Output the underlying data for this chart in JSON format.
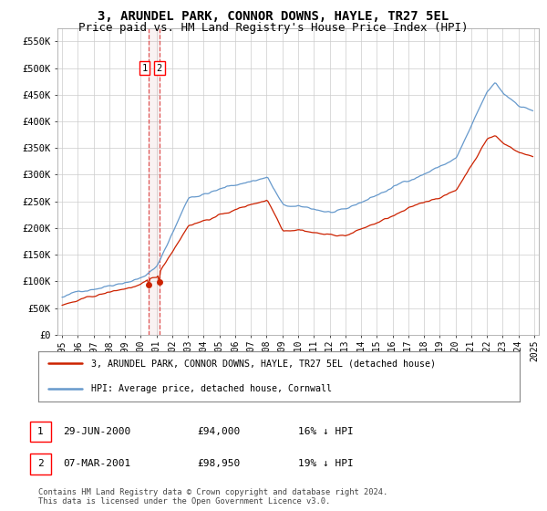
{
  "title": "3, ARUNDEL PARK, CONNOR DOWNS, HAYLE, TR27 5EL",
  "subtitle": "Price paid vs. HM Land Registry's House Price Index (HPI)",
  "title_fontsize": 10,
  "subtitle_fontsize": 9,
  "ylim": [
    0,
    575000
  ],
  "yticks": [
    0,
    50000,
    100000,
    150000,
    200000,
    250000,
    300000,
    350000,
    400000,
    450000,
    500000,
    550000
  ],
  "ytick_labels": [
    "£0",
    "£50K",
    "£100K",
    "£150K",
    "£200K",
    "£250K",
    "£300K",
    "£350K",
    "£400K",
    "£450K",
    "£500K",
    "£550K"
  ],
  "hpi_color": "#6699cc",
  "price_color": "#cc2200",
  "vline_color": "#dd4444",
  "vshade_color": "#ddaaaa",
  "legend_label_price": "3, ARUNDEL PARK, CONNOR DOWNS, HAYLE, TR27 5EL (detached house)",
  "legend_label_hpi": "HPI: Average price, detached house, Cornwall",
  "transaction1_date": "29-JUN-2000",
  "transaction1_price": "£94,000",
  "transaction1_hpi": "16% ↓ HPI",
  "transaction2_date": "07-MAR-2001",
  "transaction2_price": "£98,950",
  "transaction2_hpi": "19% ↓ HPI",
  "footer": "Contains HM Land Registry data © Crown copyright and database right 2024.\nThis data is licensed under the Open Government Licence v3.0.",
  "transaction1_x": 2000.49,
  "transaction1_y": 94000,
  "transaction2_x": 2001.18,
  "transaction2_y": 98950,
  "background_color": "#ffffff",
  "grid_color": "#cccccc",
  "xlim_left": 1994.7,
  "xlim_right": 2025.3
}
